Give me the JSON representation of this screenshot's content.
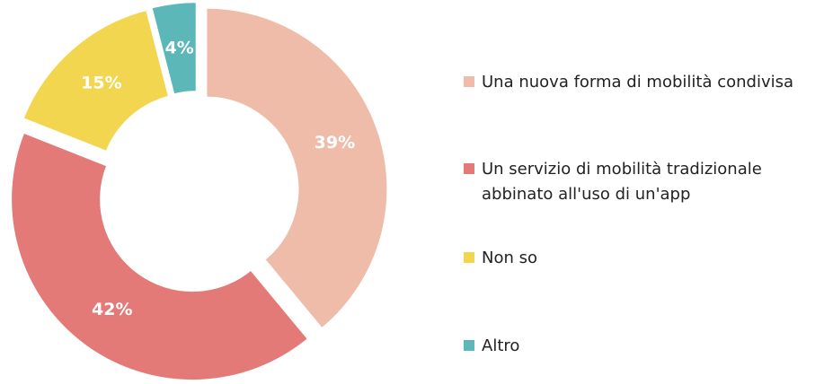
{
  "chart_data": {
    "type": "pie",
    "style": "donut",
    "categories": [
      "Una nuova forma di mobilità condivisa",
      "Un servizio di mobilità tradizionale abbinato all'uso di un'app",
      "Non so",
      "Altro"
    ],
    "values": [
      39,
      42,
      15,
      4
    ],
    "unit": "%",
    "labels": [
      "39%",
      "42%",
      "15%",
      "4%"
    ],
    "colors": [
      "#f0bcaa",
      "#e37a78",
      "#f2d64f",
      "#5cb7b8"
    ],
    "legend_position": "right",
    "title": ""
  },
  "legend": {
    "items": [
      {
        "label": "Una nuova forma di mobilità condivisa",
        "color": "#f0bcaa"
      },
      {
        "label": "Un servizio di mobilità tradizionale abbinato all'uso di un'app",
        "color": "#e37a78"
      },
      {
        "label": "Non so",
        "color": "#f2d64f"
      },
      {
        "label": "Altro",
        "color": "#5cb7b8"
      }
    ]
  }
}
